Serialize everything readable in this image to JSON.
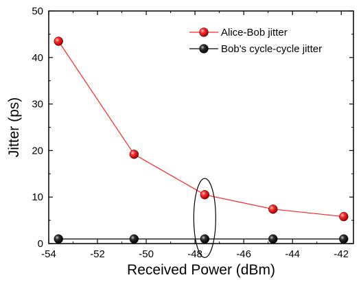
{
  "chart_data": {
    "type": "line",
    "xlabel": "Received Power (dBm)",
    "ylabel": "Jitter (ps)",
    "xlim": [
      -54,
      -41.5
    ],
    "ylim": [
      0,
      50
    ],
    "xticks": [
      -54,
      -52,
      -50,
      -48,
      -46,
      -44,
      -42
    ],
    "yticks": [
      0,
      10,
      20,
      30,
      40,
      50
    ],
    "legend_position": "top-right",
    "series": [
      {
        "name": "Alice-Bob jitter",
        "color": "#e00000",
        "line_color": "#ff2020",
        "x": [
          -53.6,
          -50.5,
          -47.6,
          -44.8,
          -41.9
        ],
        "y": [
          43.5,
          19.2,
          10.5,
          7.4,
          5.8
        ]
      },
      {
        "name": "Bob's cycle-cycle jitter",
        "color": "#000000",
        "line_color": "#000000",
        "x": [
          -53.6,
          -50.5,
          -47.6,
          -44.8,
          -41.9
        ],
        "y": [
          1.0,
          1.0,
          1.0,
          1.0,
          1.0
        ]
      }
    ],
    "annotations": [
      {
        "shape": "ellipse",
        "cx": -47.6,
        "cy": 5.5,
        "rx": 0.45,
        "ry": 8.5
      }
    ]
  }
}
